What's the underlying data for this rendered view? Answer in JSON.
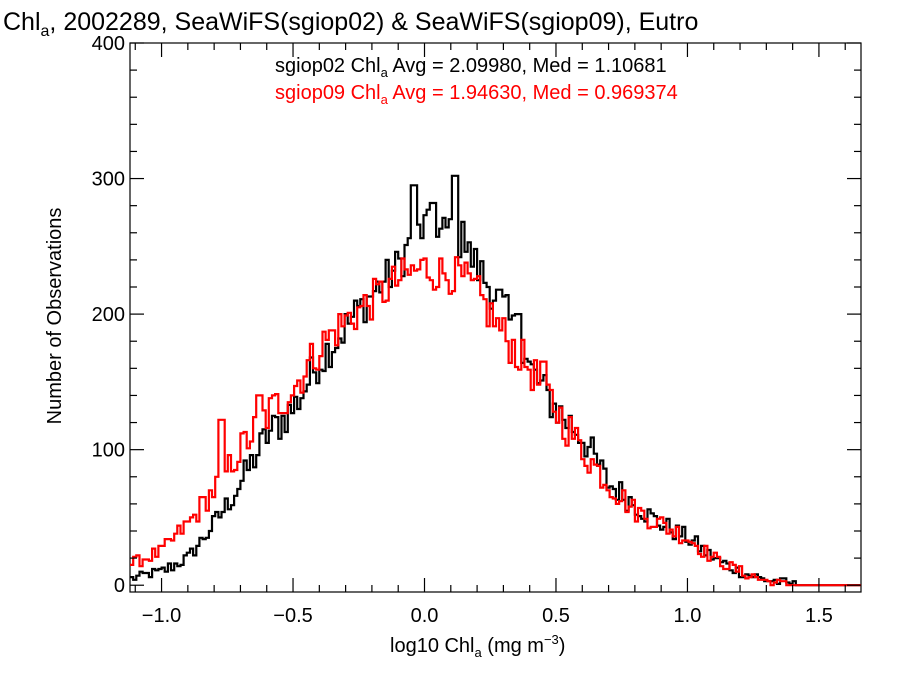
{
  "chart_data": {
    "type": "line",
    "title": {
      "prefix": "Chl",
      "sub": "a",
      "rest": ", 2002289, SeaWiFS(sgiop02) & SeaWiFS(sgiop09), Eutro"
    },
    "xlabel": {
      "prefix": "log10 Chl",
      "sub": "a",
      "rest": " (mg m",
      "sup": "−3",
      "end": ")"
    },
    "ylabel": "Number of Observations",
    "xlim": [
      -1.12,
      1.66
    ],
    "ylim": [
      -5,
      400
    ],
    "xticks": [
      -1.0,
      -0.5,
      0.0,
      0.5,
      1.0,
      1.5
    ],
    "xtick_labels": [
      "−1.0",
      "−0.5",
      "0.0",
      "0.5",
      "1.0",
      "1.5"
    ],
    "yticks": [
      0,
      100,
      200,
      300,
      400
    ],
    "ytick_labels": [
      "0",
      "100",
      "200",
      "300",
      "400"
    ],
    "grid": false,
    "legend": "top-center",
    "stats": [
      {
        "color": "#000000",
        "prefix": "sgiop02 Chl",
        "sub": "a",
        "rest": " Avg = 2.09980, Med = 1.10681"
      },
      {
        "color": "#ff0000",
        "prefix": "sgiop09 Chl",
        "sub": "a",
        "rest": " Avg = 1.94630, Med = 0.969374"
      }
    ],
    "series": [
      {
        "color": "#000000",
        "points": [
          [
            -1.12,
            5
          ],
          [
            -1.0,
            10
          ],
          [
            -0.9,
            20
          ],
          [
            -0.8,
            45
          ],
          [
            -0.7,
            75
          ],
          [
            -0.6,
            110
          ],
          [
            -0.5,
            130
          ],
          [
            -0.4,
            165
          ],
          [
            -0.3,
            190
          ],
          [
            -0.2,
            215
          ],
          [
            -0.1,
            235
          ],
          [
            -0.05,
            255
          ],
          [
            0.0,
            265
          ],
          [
            0.05,
            255
          ],
          [
            0.1,
            265
          ],
          [
            0.15,
            250
          ],
          [
            0.2,
            235
          ],
          [
            0.3,
            205
          ],
          [
            0.4,
            160
          ],
          [
            0.5,
            130
          ],
          [
            0.6,
            110
          ],
          [
            0.7,
            75
          ],
          [
            0.8,
            60
          ],
          [
            0.9,
            45
          ],
          [
            1.0,
            35
          ],
          [
            1.1,
            20
          ],
          [
            1.2,
            10
          ],
          [
            1.3,
            4
          ],
          [
            1.4,
            1
          ],
          [
            1.5,
            0
          ],
          [
            1.66,
            0
          ]
        ],
        "spikes": [
          [
            -0.05,
            295
          ],
          [
            0.11,
            302
          ],
          [
            0.03,
            282
          ],
          [
            0.14,
            268
          ],
          [
            0.35,
            200
          ]
        ]
      },
      {
        "color": "#ff0000",
        "points": [
          [
            -1.12,
            15
          ],
          [
            -1.0,
            25
          ],
          [
            -0.9,
            45
          ],
          [
            -0.8,
            70
          ],
          [
            -0.7,
            100
          ],
          [
            -0.6,
            125
          ],
          [
            -0.5,
            145
          ],
          [
            -0.4,
            175
          ],
          [
            -0.3,
            195
          ],
          [
            -0.2,
            210
          ],
          [
            -0.1,
            225
          ],
          [
            0.0,
            235
          ],
          [
            0.05,
            230
          ],
          [
            0.1,
            230
          ],
          [
            0.15,
            225
          ],
          [
            0.2,
            215
          ],
          [
            0.3,
            185
          ],
          [
            0.4,
            160
          ],
          [
            0.5,
            130
          ],
          [
            0.6,
            100
          ],
          [
            0.7,
            75
          ],
          [
            0.8,
            55
          ],
          [
            0.9,
            45
          ],
          [
            1.0,
            35
          ],
          [
            1.1,
            20
          ],
          [
            1.2,
            10
          ],
          [
            1.3,
            3
          ],
          [
            1.4,
            0
          ],
          [
            1.66,
            0
          ]
        ],
        "spikes": [
          [
            -0.63,
            140
          ],
          [
            -0.78,
            122
          ],
          [
            0.45,
            165
          ]
        ]
      }
    ]
  }
}
